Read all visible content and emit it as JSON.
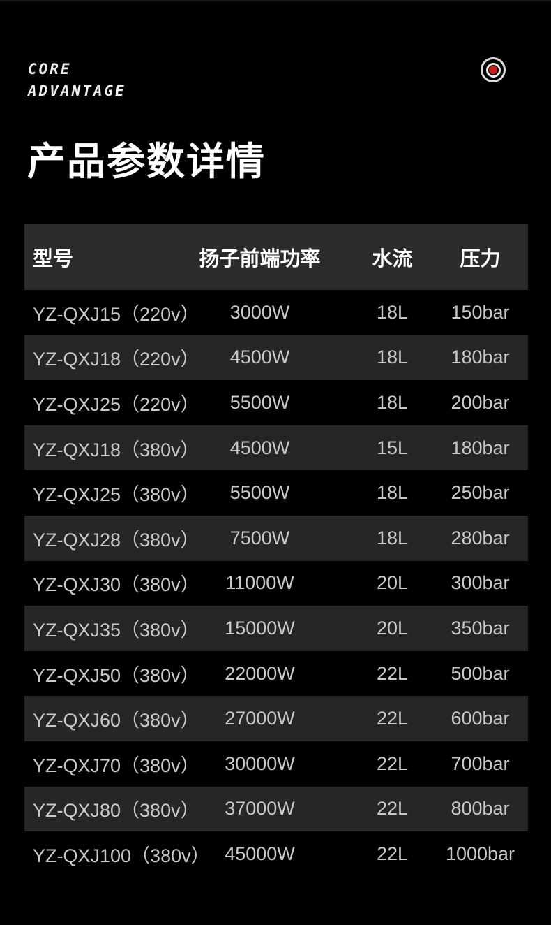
{
  "brand": {
    "line1": "CORE",
    "line2": "ADVANTAGE"
  },
  "icon": {
    "name": "target-record-icon",
    "ring_color": "#dcdcdc",
    "dot_color": "#c9201d"
  },
  "title": "产品参数详情",
  "colors": {
    "page_bg": "#000000",
    "header_bg": "#2b2b2b",
    "row_alt_bg": "#262626",
    "header_text": "#ffffff",
    "row_text": "#c9c9c9",
    "accent_red": "#c9201d"
  },
  "table": {
    "columns": [
      "型号",
      "扬子前端功率",
      "水流",
      "压力"
    ],
    "rows": [
      {
        "model": "YZ-QXJ15（220v）",
        "power": "3000W",
        "flow": "18L",
        "pressure": "150bar"
      },
      {
        "model": "YZ-QXJ18（220v）",
        "power": "4500W",
        "flow": "18L",
        "pressure": "180bar"
      },
      {
        "model": "YZ-QXJ25（220v）",
        "power": "5500W",
        "flow": "18L",
        "pressure": "200bar"
      },
      {
        "model": "YZ-QXJ18（380v）",
        "power": "4500W",
        "flow": "15L",
        "pressure": "180bar"
      },
      {
        "model": "YZ-QXJ25（380v）",
        "power": "5500W",
        "flow": "18L",
        "pressure": "250bar"
      },
      {
        "model": "YZ-QXJ28（380v）",
        "power": "7500W",
        "flow": "18L",
        "pressure": "280bar"
      },
      {
        "model": "YZ-QXJ30（380v）",
        "power": "11000W",
        "flow": "20L",
        "pressure": "300bar"
      },
      {
        "model": "YZ-QXJ35（380v）",
        "power": "15000W",
        "flow": "20L",
        "pressure": "350bar"
      },
      {
        "model": "YZ-QXJ50（380v）",
        "power": "22000W",
        "flow": "22L",
        "pressure": "500bar"
      },
      {
        "model": "YZ-QXJ60（380v）",
        "power": "27000W",
        "flow": "22L",
        "pressure": "600bar"
      },
      {
        "model": "YZ-QXJ70（380v）",
        "power": "30000W",
        "flow": "22L",
        "pressure": "700bar"
      },
      {
        "model": "YZ-QXJ80（380v）",
        "power": "37000W",
        "flow": "22L",
        "pressure": "800bar"
      },
      {
        "model": "YZ-QXJ100（380v）",
        "power": "45000W",
        "flow": "22L",
        "pressure": "1000bar"
      }
    ]
  }
}
